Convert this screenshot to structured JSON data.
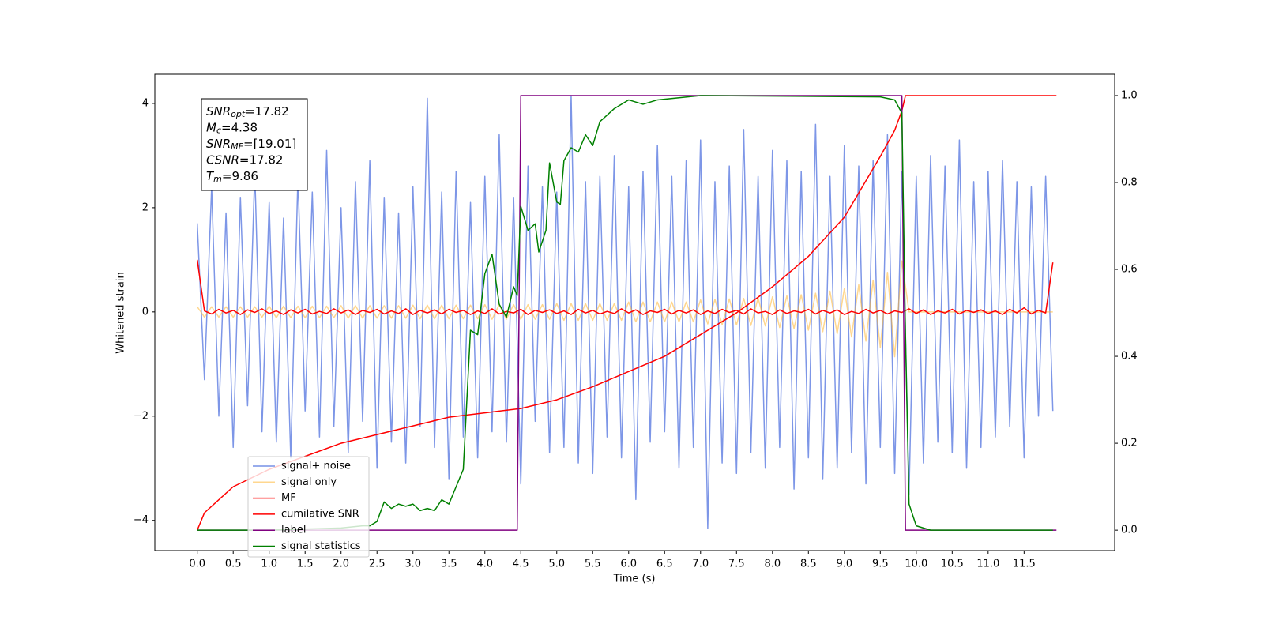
{
  "chart_data": {
    "type": "line",
    "xlabel": "Time (s)",
    "ylabel": "Whitened strain",
    "xlim": [
      -0.59,
      12.76
    ],
    "ylim": [
      -4.58,
      4.56
    ],
    "y2lim": [
      -0.047,
      1.049
    ],
    "xticks": [
      {
        "value": 0,
        "label": "0.0"
      },
      {
        "value": 0.5,
        "label": "0.5"
      },
      {
        "value": 1,
        "label": "1.0"
      },
      {
        "value": 1.5,
        "label": "1.5"
      },
      {
        "value": 2,
        "label": "2.0"
      },
      {
        "value": 2.5,
        "label": "2.5"
      },
      {
        "value": 3,
        "label": "3.0"
      },
      {
        "value": 3.5,
        "label": "3.5"
      },
      {
        "value": 4,
        "label": "4.0"
      },
      {
        "value": 4.5,
        "label": "4.5"
      },
      {
        "value": 5,
        "label": "5.0"
      },
      {
        "value": 5.5,
        "label": "5.5"
      },
      {
        "value": 6,
        "label": "6.0"
      },
      {
        "value": 6.5,
        "label": "6.5"
      },
      {
        "value": 7,
        "label": "7.0"
      },
      {
        "value": 7.5,
        "label": "7.5"
      },
      {
        "value": 8,
        "label": "8.0"
      },
      {
        "value": 8.5,
        "label": "8.5"
      },
      {
        "value": 9,
        "label": "9.0"
      },
      {
        "value": 9.5,
        "label": "9.5"
      },
      {
        "value": 10,
        "label": "10.0"
      },
      {
        "value": 10.5,
        "label": "10.5"
      },
      {
        "value": 11,
        "label": "11.0"
      },
      {
        "value": 11.5,
        "label": "11.5"
      }
    ],
    "yticks": [
      {
        "value": -4,
        "label": "−4"
      },
      {
        "value": -2,
        "label": "−2"
      },
      0,
      2,
      4
    ],
    "y2ticks": [
      {
        "value": 0,
        "label": "0.0"
      },
      {
        "value": 0.2,
        "label": "0.2"
      },
      {
        "value": 0.4,
        "label": "0.4"
      },
      {
        "value": 0.6,
        "label": "0.6"
      },
      {
        "value": 0.8,
        "label": "0.8"
      },
      {
        "value": 1,
        "label": "1.0"
      }
    ],
    "grid": false,
    "legend_loc": "lower left",
    "annotations": [
      {
        "text": "SNR",
        "sub": "opt",
        "value": "=17.82"
      },
      {
        "text": "M",
        "sub": "c",
        "value": "=4.38"
      },
      {
        "text": "SNR",
        "sub": "MF",
        "value": "=[19.01]"
      },
      {
        "text": "CSNR",
        "value": "=17.82"
      },
      {
        "text": "T",
        "sub": "m",
        "value": "=9.86"
      }
    ],
    "x": [
      0,
      0.1,
      0.2,
      0.3,
      0.4,
      0.5,
      0.6,
      0.7,
      0.8,
      0.9,
      1,
      1.1,
      1.2,
      1.3,
      1.4,
      1.5,
      1.6,
      1.7,
      1.8,
      1.9,
      2,
      2.1,
      2.2,
      2.3,
      2.4,
      2.5,
      2.6,
      2.7,
      2.8,
      2.9,
      3,
      3.1,
      3.2,
      3.3,
      3.4,
      3.5,
      3.6,
      3.7,
      3.8,
      3.9,
      4,
      4.1,
      4.2,
      4.3,
      4.4,
      4.5,
      4.6,
      4.7,
      4.8,
      4.9,
      5,
      5.1,
      5.2,
      5.3,
      5.4,
      5.5,
      5.6,
      5.7,
      5.8,
      5.9,
      6,
      6.1,
      6.2,
      6.3,
      6.4,
      6.5,
      6.6,
      6.7,
      6.8,
      6.9,
      7,
      7.1,
      7.2,
      7.3,
      7.4,
      7.5,
      7.6,
      7.7,
      7.8,
      7.9,
      8,
      8.1,
      8.2,
      8.3,
      8.4,
      8.5,
      8.6,
      8.7,
      8.8,
      8.9,
      9,
      9.1,
      9.2,
      9.3,
      9.4,
      9.5,
      9.6,
      9.7,
      9.8,
      9.9,
      10,
      10.1,
      10.2,
      10.3,
      10.4,
      10.5,
      10.6,
      10.7,
      10.8,
      10.9,
      11,
      11.1,
      11.2,
      11.3,
      11.4,
      11.5,
      11.6,
      11.7,
      11.8,
      11.9
    ],
    "series": [
      {
        "name": "signal+ noise",
        "color": "#7690e6",
        "values": [
          1.7,
          -1.3,
          2.4,
          -2.0,
          1.9,
          -2.6,
          2.2,
          -1.8,
          2.7,
          -2.3,
          2.1,
          -2.5,
          1.8,
          -2.8,
          2.6,
          -1.9,
          2.3,
          -2.4,
          3.1,
          -2.2,
          2.0,
          -2.7,
          2.5,
          -2.1,
          2.9,
          -3.0,
          2.2,
          -2.5,
          1.9,
          -2.9,
          2.4,
          -2.2,
          4.1,
          -2.6,
          2.3,
          -3.2,
          2.7,
          -2.4,
          2.1,
          -2.8,
          2.6,
          -2.3,
          3.4,
          -2.5,
          2.2,
          -3.3,
          2.8,
          -2.1,
          2.4,
          -2.7,
          2.3,
          -2.6,
          4.15,
          -2.9,
          2.5,
          -3.1,
          2.6,
          -2.4,
          3.0,
          -2.8,
          2.4,
          -3.6,
          2.7,
          -2.5,
          3.2,
          -2.3,
          2.6,
          -3.0,
          2.9,
          -2.6,
          3.3,
          -4.15,
          2.5,
          -2.9,
          2.8,
          -3.1,
          3.5,
          -2.7,
          2.6,
          -3.0,
          3.1,
          -2.6,
          2.9,
          -3.4,
          2.7,
          -2.8,
          3.6,
          -3.2,
          2.6,
          -3.0,
          3.2,
          -2.7,
          2.8,
          -3.3,
          2.9,
          -2.6,
          3.4,
          -3.1,
          2.7,
          -3.5,
          2.6,
          -2.9,
          3.0,
          -2.5,
          2.8,
          -2.7,
          3.3,
          -3.0,
          2.5,
          -2.6,
          2.7,
          -2.4,
          2.9,
          -2.2,
          2.5,
          -2.8,
          2.4,
          -2.0,
          2.6,
          -1.9
        ]
      },
      {
        "name": "signal only",
        "color": "#ffb733",
        "values": [
          0.1,
          -0.1,
          0.1,
          -0.1,
          0.1,
          -0.1,
          0.1,
          -0.1,
          0.1,
          -0.1,
          0.11,
          -0.11,
          0.11,
          -0.11,
          0.11,
          -0.11,
          0.11,
          -0.11,
          0.11,
          -0.11,
          0.12,
          -0.12,
          0.12,
          -0.12,
          0.12,
          -0.12,
          0.12,
          -0.12,
          0.12,
          -0.12,
          0.13,
          -0.13,
          0.13,
          -0.13,
          0.13,
          -0.13,
          0.13,
          -0.13,
          0.13,
          -0.13,
          0.14,
          -0.14,
          0.14,
          -0.14,
          0.14,
          -0.14,
          0.14,
          -0.14,
          0.14,
          -0.14,
          0.16,
          -0.16,
          0.16,
          -0.16,
          0.16,
          -0.16,
          0.16,
          -0.16,
          0.16,
          -0.16,
          0.19,
          -0.19,
          0.19,
          -0.19,
          0.19,
          -0.19,
          0.19,
          -0.19,
          0.19,
          -0.19,
          0.23,
          -0.23,
          0.24,
          -0.24,
          0.25,
          -0.25,
          0.26,
          -0.26,
          0.27,
          -0.27,
          0.29,
          -0.3,
          0.31,
          -0.32,
          0.33,
          -0.35,
          0.36,
          -0.38,
          0.4,
          -0.42,
          0.45,
          -0.48,
          0.52,
          -0.56,
          0.61,
          -0.68,
          0.76,
          -0.86,
          0.98,
          0,
          0,
          0,
          0,
          0,
          0,
          0,
          0,
          0,
          0,
          0,
          0,
          0,
          0,
          0,
          0,
          0,
          0,
          0,
          0,
          0
        ]
      },
      {
        "name": "MF",
        "color": "#ff0000",
        "values": [
          1.0,
          0.02,
          -0.04,
          0.05,
          -0.02,
          0.03,
          -0.05,
          0.04,
          -0.01,
          0.06,
          -0.03,
          0.02,
          -0.05,
          0.04,
          -0.02,
          0.05,
          -0.04,
          0.01,
          -0.03,
          0.06,
          -0.02,
          0.04,
          -0.05,
          0.03,
          -0.01,
          0.05,
          -0.04,
          0.02,
          -0.03,
          0.06,
          -0.05,
          0.03,
          -0.02,
          0.04,
          -0.04,
          0.05,
          -0.01,
          0.03,
          -0.05,
          0.02,
          -0.03,
          0.06,
          -0.04,
          0.01,
          -0.02,
          0.05,
          -0.05,
          0.03,
          -0.01,
          0.04,
          -0.03,
          0.02,
          -0.05,
          0.05,
          -0.02,
          0.03,
          -0.04,
          0.01,
          -0.03,
          0.06,
          -0.02,
          0.04,
          -0.05,
          0.02,
          -0.01,
          0.05,
          -0.04,
          0.03,
          -0.02,
          0.04,
          -0.05,
          0.02,
          -0.03,
          0.05,
          -0.01,
          0.03,
          -0.04,
          0.06,
          -0.02,
          0.01,
          -0.05,
          0.04,
          -0.03,
          0.02,
          -0.01,
          0.05,
          -0.04,
          0.03,
          -0.02,
          0.04,
          -0.05,
          0.01,
          -0.03,
          0.05,
          -0.02,
          0.03,
          -0.04,
          0.02,
          -0.01,
          0.06,
          -0.03,
          0.04,
          -0.05,
          0.02,
          -0.02,
          0.05,
          -0.04,
          0.03,
          -0.01,
          0.04,
          -0.03,
          0.02,
          -0.05,
          0.05,
          -0.02,
          0.08,
          -0.04,
          0.03,
          -0.02,
          0.95
        ]
      },
      {
        "name": "cumilative SNR",
        "color": "#ff0000",
        "axis": "y2",
        "x": [
          0,
          0.1,
          0.5,
          1,
          1.5,
          2,
          2.5,
          3,
          3.5,
          4,
          4.5,
          5,
          5.5,
          6,
          6.5,
          7,
          7.5,
          8,
          8.5,
          9,
          9.5,
          9.7,
          9.8,
          9.85,
          9.9,
          10.5,
          11,
          11.5,
          11.95
        ],
        "values": [
          0,
          0.04,
          0.1,
          0.14,
          0.17,
          0.2,
          0.22,
          0.24,
          0.26,
          0.27,
          0.28,
          0.3,
          0.33,
          0.365,
          0.4,
          0.45,
          0.5,
          0.56,
          0.63,
          0.72,
          0.86,
          0.92,
          0.965,
          1.0,
          1.0,
          1.0,
          1.0,
          1.0,
          1.0
        ]
      },
      {
        "name": "label",
        "color": "#800080",
        "axis": "y2",
        "x": [
          0,
          4.45,
          4.5,
          9.8,
          9.85,
          11.95
        ],
        "values": [
          0,
          0,
          1,
          1,
          0,
          0
        ]
      },
      {
        "name": "signal statistics",
        "color": "#008000",
        "axis": "y2",
        "x": [
          0,
          1,
          2,
          2.3,
          2.4,
          2.5,
          2.6,
          2.7,
          2.8,
          2.9,
          3.0,
          3.1,
          3.2,
          3.3,
          3.4,
          3.5,
          3.6,
          3.7,
          3.8,
          3.9,
          4.0,
          4.1,
          4.2,
          4.3,
          4.4,
          4.45,
          4.5,
          4.6,
          4.7,
          4.75,
          4.85,
          4.9,
          5.0,
          5.05,
          5.1,
          5.2,
          5.3,
          5.4,
          5.5,
          5.6,
          5.8,
          6.0,
          6.2,
          6.4,
          7.0,
          9.5,
          9.7,
          9.8,
          9.85,
          9.9,
          10.0,
          10.2,
          11.9
        ],
        "values": [
          0,
          0,
          0.005,
          0.01,
          0.01,
          0.02,
          0.065,
          0.05,
          0.06,
          0.055,
          0.06,
          0.045,
          0.05,
          0.045,
          0.07,
          0.06,
          0.1,
          0.14,
          0.46,
          0.45,
          0.59,
          0.635,
          0.52,
          0.49,
          0.56,
          0.54,
          0.745,
          0.69,
          0.705,
          0.64,
          0.69,
          0.845,
          0.755,
          0.75,
          0.85,
          0.88,
          0.87,
          0.91,
          0.885,
          0.94,
          0.97,
          0.99,
          0.98,
          0.99,
          1.0,
          0.997,
          0.99,
          0.96,
          0.45,
          0.06,
          0.01,
          0,
          0
        ]
      }
    ]
  }
}
